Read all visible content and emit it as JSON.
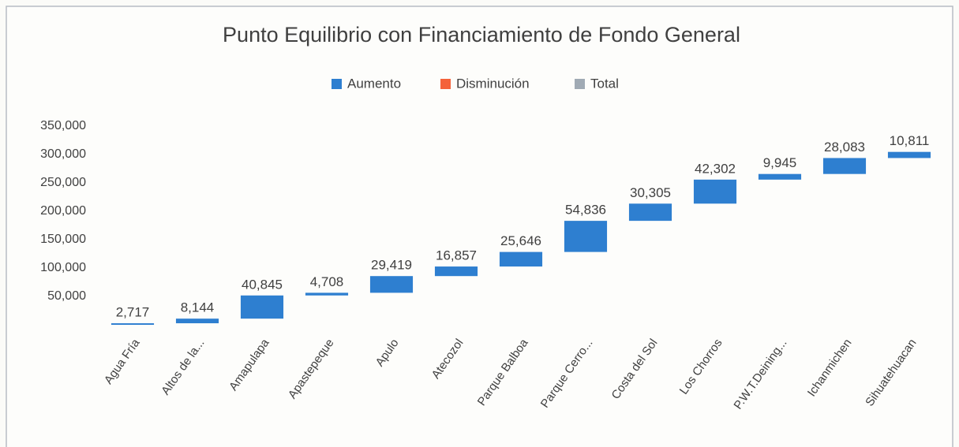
{
  "chart_data": {
    "type": "waterfall",
    "title": "Punto Equilibrio con Financiamiento de Fondo General",
    "legend": [
      {
        "name": "Aumento",
        "color": "#2e7fd0"
      },
      {
        "name": "Disminución",
        "color": "#f4623a"
      },
      {
        "name": "Total",
        "color": "#a0aab4"
      }
    ],
    "categories": [
      "Agua Fría",
      "Altos de la...",
      "Amapulapa",
      "Apastepeque",
      "Apulo",
      "Atecozol",
      "Parque Balboa",
      "Parque Cerro...",
      "Costa del Sol",
      "Los Chorros",
      "P.W.T.Deining...",
      "Ichanmichen",
      "Sihuatehuacan"
    ],
    "values": [
      2717,
      8144,
      40845,
      4708,
      29419,
      16857,
      25646,
      54836,
      30305,
      42302,
      9945,
      28083,
      10811
    ],
    "value_labels": [
      "2,717",
      "8,144",
      "40,845",
      "4,708",
      "29,419",
      "16,857",
      "25,646",
      "54,836",
      "30,305",
      "42,302",
      "9,945",
      "28,083",
      "10,811"
    ],
    "ylim": [
      0,
      350000
    ],
    "yticks": [
      {
        "value": 50000,
        "label": "50,000"
      },
      {
        "value": 100000,
        "label": "100,000"
      },
      {
        "value": 150000,
        "label": "150,000"
      },
      {
        "value": 200000,
        "label": "200,000"
      },
      {
        "value": 250000,
        "label": "250,000"
      },
      {
        "value": 300000,
        "label": "300,000"
      },
      {
        "value": 350000,
        "label": "350,000"
      }
    ]
  }
}
